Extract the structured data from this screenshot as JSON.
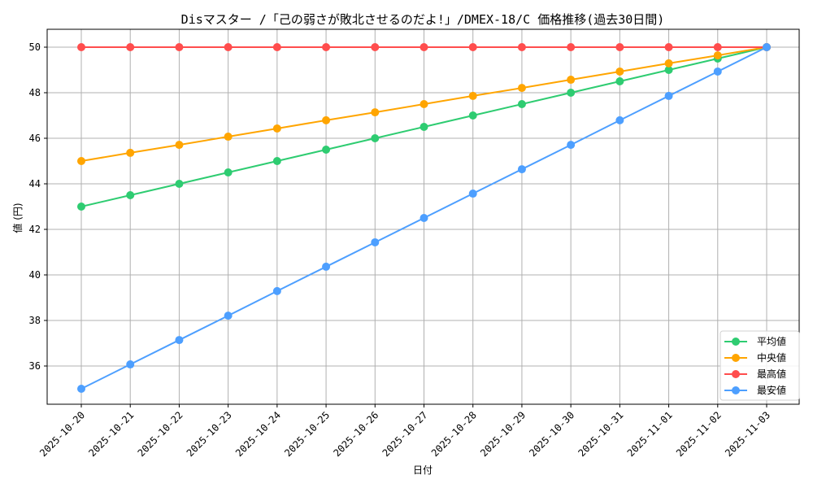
{
  "chart_data": {
    "type": "line",
    "title": "Disマスター /「己の弱さが敗北させるのだよ!」/DMEX-18/C 価格推移(過去30日間)",
    "xlabel": "日付",
    "ylabel": "値 (円)",
    "ylim": [
      34.25,
      50.75
    ],
    "yticks": [
      36,
      38,
      40,
      42,
      44,
      46,
      48,
      50
    ],
    "grid": true,
    "legend_position": "lower right",
    "categories": [
      "2025-10-20",
      "2025-10-21",
      "2025-10-22",
      "2025-10-23",
      "2025-10-24",
      "2025-10-25",
      "2025-10-26",
      "2025-10-27",
      "2025-10-28",
      "2025-10-29",
      "2025-10-30",
      "2025-10-31",
      "2025-11-01",
      "2025-11-02",
      "2025-11-03"
    ],
    "series": [
      {
        "name": "平均値",
        "color": "#2ecc71",
        "values": [
          43,
          43.5,
          44,
          44.5,
          45,
          45.5,
          46,
          46.5,
          47,
          47.5,
          48,
          48.5,
          49,
          49.5,
          50
        ]
      },
      {
        "name": "中央値",
        "color": "#ffa500",
        "values": [
          45,
          45.36,
          45.71,
          46.07,
          46.43,
          46.79,
          47.14,
          47.5,
          47.86,
          48.21,
          48.57,
          48.93,
          49.29,
          49.64,
          50
        ]
      },
      {
        "name": "最高値",
        "color": "#ff4d4d",
        "values": [
          50,
          50,
          50,
          50,
          50,
          50,
          50,
          50,
          50,
          50,
          50,
          50,
          50,
          50,
          50
        ]
      },
      {
        "name": "最安値",
        "color": "#4d9fff",
        "values": [
          35,
          36.07,
          37.14,
          38.21,
          39.29,
          40.36,
          41.43,
          42.5,
          43.57,
          44.64,
          45.71,
          46.79,
          47.86,
          48.93,
          50
        ]
      }
    ]
  }
}
